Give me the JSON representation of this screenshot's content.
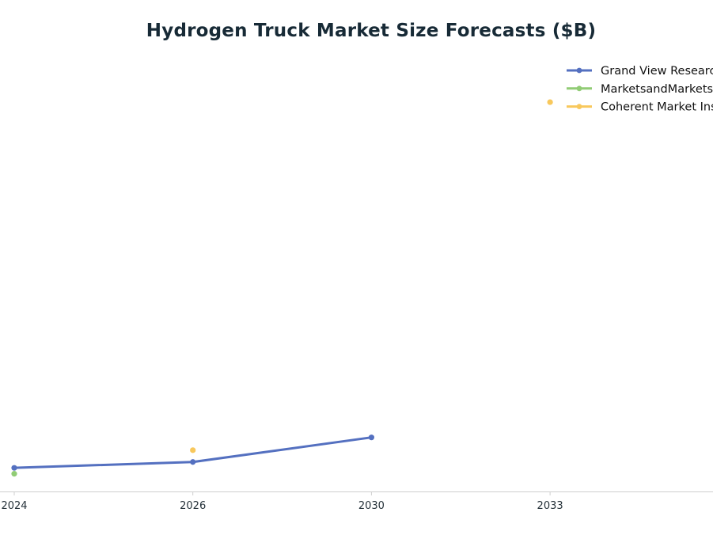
{
  "chart_data": {
    "type": "line",
    "title": "Hydrogen Truck Market Size Forecasts ($B)",
    "xlabel": "",
    "ylabel": "",
    "categories": [
      "2024",
      "2026",
      "2030",
      "2033"
    ],
    "ylim": [
      0,
      45
    ],
    "grid": false,
    "legend_position": "top-right",
    "series": [
      {
        "name": "Grand View Research",
        "color": "#5470c0",
        "values": [
          2.4,
          3.0,
          5.5,
          null
        ]
      },
      {
        "name": "MarketsandMarkets",
        "color": "#91cc75",
        "values": [
          1.8,
          null,
          null,
          null
        ]
      },
      {
        "name": "Coherent Market Insights",
        "color": "#f8c85c",
        "values": [
          null,
          4.2,
          null,
          39.6
        ]
      }
    ]
  }
}
